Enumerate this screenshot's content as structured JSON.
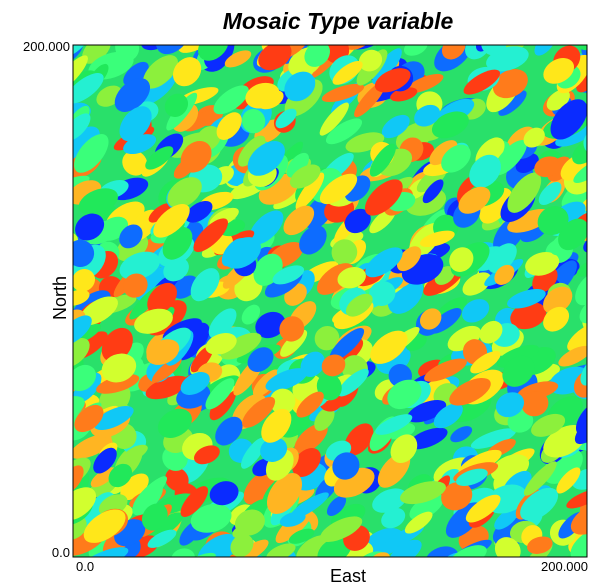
{
  "chart_data": {
    "type": "heatmap",
    "title": "Mosaic Type variable",
    "xlabel": "East",
    "ylabel": "North",
    "xlim": [
      0.0,
      200.0
    ],
    "ylim": [
      0.0,
      200.0
    ],
    "x_tick_labels": [
      "0.0",
      "200.000"
    ],
    "y_tick_labels": [
      "0.0",
      "200.000"
    ],
    "grid": false,
    "legend": "none",
    "description": "Random mosaic of overlapping elliptical patches, each filled with one of several category colours (rainbow palette)",
    "palette": [
      "#0a2bff",
      "#0d6cff",
      "#10c8f6",
      "#24f0d2",
      "#3aff7a",
      "#21e85a",
      "#8cf03c",
      "#d2ff2e",
      "#ffe71a",
      "#ffb522",
      "#ff7b1b",
      "#ff3c14"
    ]
  }
}
